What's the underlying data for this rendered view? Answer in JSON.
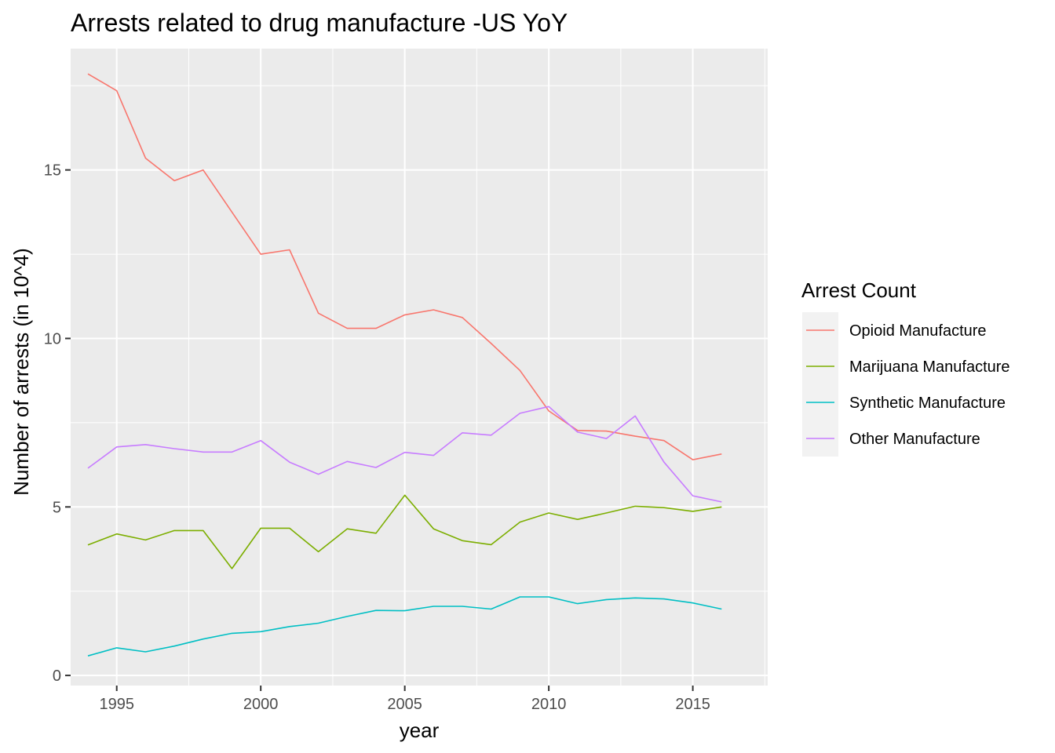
{
  "chart_data": {
    "type": "line",
    "title": "Arrests related to drug manufacture -US YoY",
    "xlabel": "year",
    "ylabel": "Number of arrests (in 10^4)",
    "xlim": [
      1993.4,
      2017.6
    ],
    "ylim": [
      -0.3,
      18.6
    ],
    "x_ticks": [
      1995,
      2000,
      2005,
      2010,
      2015
    ],
    "y_ticks": [
      0,
      5,
      10,
      15
    ],
    "x_tick_labels": [
      "1995",
      "2000",
      "2005",
      "2010",
      "2015"
    ],
    "y_tick_labels": [
      "0",
      "5",
      "10",
      "15"
    ],
    "grid": true,
    "legend": {
      "title": "Arrest Count",
      "position": "right"
    },
    "x": [
      1994,
      1995,
      1996,
      1997,
      1998,
      1999,
      2000,
      2001,
      2002,
      2003,
      2004,
      2005,
      2006,
      2007,
      2008,
      2009,
      2010,
      2011,
      2012,
      2013,
      2014,
      2015,
      2016
    ],
    "series": [
      {
        "name": "Opioid Manufacture",
        "color": "#F8766D",
        "values": [
          17.85,
          17.35,
          15.35,
          14.68,
          15.0,
          13.75,
          12.5,
          12.63,
          10.75,
          10.3,
          10.3,
          10.7,
          10.85,
          10.62,
          9.85,
          9.05,
          7.85,
          7.27,
          7.25,
          7.1,
          6.97,
          6.4,
          6.57
        ]
      },
      {
        "name": "Marijuana Manufacture",
        "color": "#7CAE00",
        "values": [
          3.87,
          4.2,
          4.02,
          4.3,
          4.3,
          3.17,
          4.37,
          4.37,
          3.67,
          4.35,
          4.22,
          5.35,
          4.35,
          4.0,
          3.88,
          4.55,
          4.82,
          4.63,
          4.82,
          5.02,
          4.98,
          4.87,
          5.0
        ]
      },
      {
        "name": "Synthetic Manufacture",
        "color": "#00BFC4",
        "values": [
          0.58,
          0.82,
          0.7,
          0.87,
          1.08,
          1.25,
          1.3,
          1.45,
          1.55,
          1.75,
          1.93,
          1.92,
          2.05,
          2.05,
          1.97,
          2.33,
          2.33,
          2.13,
          2.25,
          2.3,
          2.27,
          2.15,
          1.97
        ]
      },
      {
        "name": "Other Manufacture",
        "color": "#C77CFF",
        "values": [
          6.15,
          6.78,
          6.85,
          6.73,
          6.63,
          6.63,
          6.97,
          6.33,
          5.97,
          6.35,
          6.17,
          6.62,
          6.53,
          7.2,
          7.13,
          7.78,
          7.98,
          7.22,
          7.03,
          7.7,
          6.33,
          5.33,
          5.15
        ]
      }
    ]
  }
}
